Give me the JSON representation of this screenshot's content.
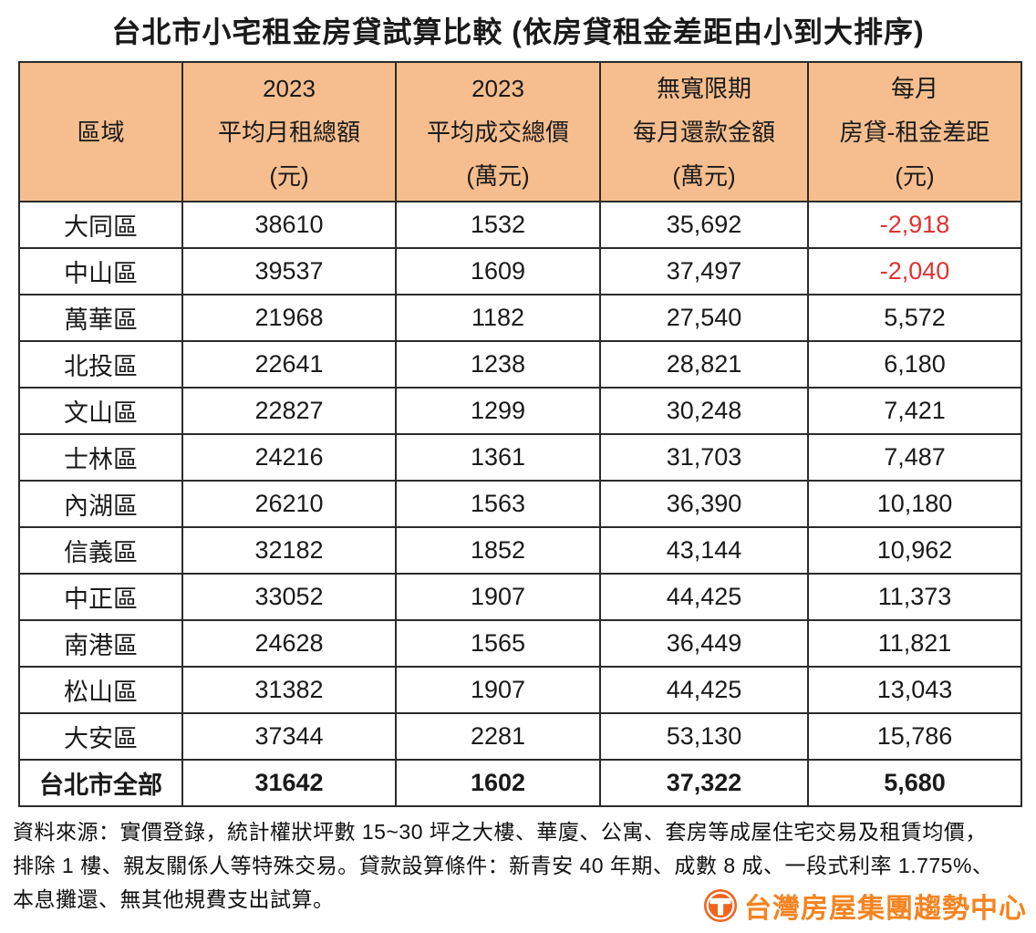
{
  "title": "台北市小宅租金房貸試算比較 (依房貸租金差距由小到大排序)",
  "colors": {
    "header_bg": "#f6be8e",
    "negative_value": "#e03232",
    "logo_orange": "#f5831f",
    "table_border": "#2b2b2b"
  },
  "chart_data": {
    "type": "table",
    "title": "台北市小宅租金房貸試算比較 (依房貸租金差距由小到大排序)",
    "columns": [
      {
        "lines": [
          "區域"
        ]
      },
      {
        "lines": [
          "2023",
          "平均月租總額",
          "(元)"
        ]
      },
      {
        "lines": [
          "2023",
          "平均成交總價",
          "(萬元)"
        ]
      },
      {
        "lines": [
          "無寬限期",
          "每月還款金額",
          "(萬元)"
        ]
      },
      {
        "lines": [
          "每月",
          "房貸-租金差距",
          "(元)"
        ]
      }
    ],
    "rows": [
      {
        "cells": [
          "大同區",
          "38610",
          "1532",
          "35,692",
          "-2,918"
        ],
        "negative": true,
        "total": false
      },
      {
        "cells": [
          "中山區",
          "39537",
          "1609",
          "37,497",
          "-2,040"
        ],
        "negative": true,
        "total": false
      },
      {
        "cells": [
          "萬華區",
          "21968",
          "1182",
          "27,540",
          "5,572"
        ],
        "negative": false,
        "total": false
      },
      {
        "cells": [
          "北投區",
          "22641",
          "1238",
          "28,821",
          "6,180"
        ],
        "negative": false,
        "total": false
      },
      {
        "cells": [
          "文山區",
          "22827",
          "1299",
          "30,248",
          "7,421"
        ],
        "negative": false,
        "total": false
      },
      {
        "cells": [
          "士林區",
          "24216",
          "1361",
          "31,703",
          "7,487"
        ],
        "negative": false,
        "total": false
      },
      {
        "cells": [
          "內湖區",
          "26210",
          "1563",
          "36,390",
          "10,180"
        ],
        "negative": false,
        "total": false
      },
      {
        "cells": [
          "信義區",
          "32182",
          "1852",
          "43,144",
          "10,962"
        ],
        "negative": false,
        "total": false
      },
      {
        "cells": [
          "中正區",
          "33052",
          "1907",
          "44,425",
          "11,373"
        ],
        "negative": false,
        "total": false
      },
      {
        "cells": [
          "南港區",
          "24628",
          "1565",
          "36,449",
          "11,821"
        ],
        "negative": false,
        "total": false
      },
      {
        "cells": [
          "松山區",
          "31382",
          "1907",
          "44,425",
          "13,043"
        ],
        "negative": false,
        "total": false
      },
      {
        "cells": [
          "大安區",
          "37344",
          "2281",
          "53,130",
          "15,786"
        ],
        "negative": false,
        "total": false
      },
      {
        "cells": [
          "台北市全部",
          "31642",
          "1602",
          "37,322",
          "5,680"
        ],
        "negative": false,
        "total": true
      }
    ]
  },
  "footer": {
    "lines": [
      "資料來源：實價登錄，統計權狀坪數 15~30 坪之大樓、華廈、公寓、套房等成屋住宅交易及租賃均價，",
      "排除 1 樓、親友關係人等特殊交易。貸款設算條件：新青安 40 年期、成數 8 成、一段式利率 1.775%、",
      "本息攤還、無其他規費支出試算。"
    ],
    "logo_text": "台灣房屋集團趨勢中心"
  }
}
